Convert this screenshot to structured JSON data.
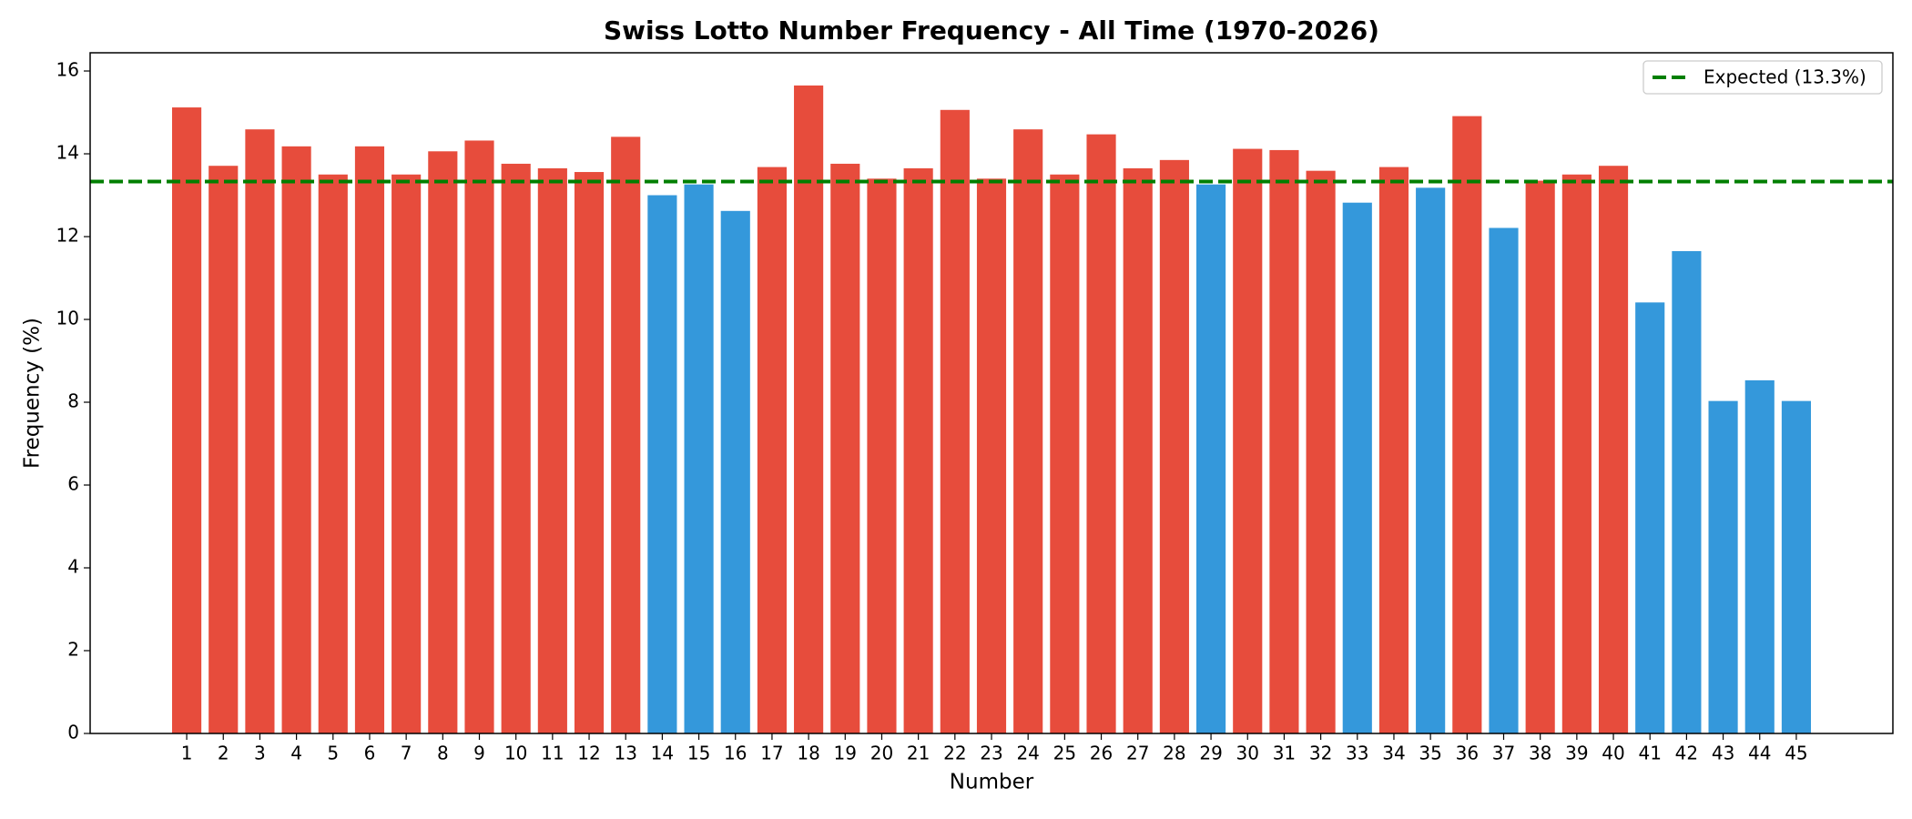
{
  "chart_data": {
    "type": "bar",
    "title": "Swiss Lotto Number Frequency - All Time (1970-2026)",
    "x_label": "Number",
    "y_label": "Frequency (%)",
    "x": [
      1,
      2,
      3,
      4,
      5,
      6,
      7,
      8,
      9,
      10,
      11,
      12,
      13,
      14,
      15,
      16,
      17,
      18,
      19,
      20,
      21,
      22,
      23,
      24,
      25,
      26,
      27,
      28,
      29,
      30,
      31,
      32,
      33,
      34,
      35,
      36,
      37,
      38,
      39,
      40,
      41,
      42,
      43,
      44,
      45
    ],
    "values": [
      15.12,
      13.71,
      14.59,
      14.18,
      13.5,
      14.18,
      13.5,
      14.06,
      14.32,
      13.76,
      13.65,
      13.56,
      14.41,
      13.0,
      13.26,
      12.62,
      13.68,
      15.65,
      13.76,
      13.4,
      13.65,
      15.06,
      13.4,
      14.59,
      13.5,
      14.47,
      13.65,
      13.85,
      13.26,
      14.12,
      14.09,
      13.59,
      12.82,
      13.68,
      13.18,
      14.91,
      12.21,
      13.35,
      13.5,
      13.71,
      10.41,
      11.65,
      8.03,
      8.53,
      8.03
    ],
    "colors": [
      "#e74c3c",
      "#e74c3c",
      "#e74c3c",
      "#e74c3c",
      "#e74c3c",
      "#e74c3c",
      "#e74c3c",
      "#e74c3c",
      "#e74c3c",
      "#e74c3c",
      "#e74c3c",
      "#e74c3c",
      "#e74c3c",
      "#3498db",
      "#3498db",
      "#3498db",
      "#e74c3c",
      "#e74c3c",
      "#e74c3c",
      "#e74c3c",
      "#e74c3c",
      "#e74c3c",
      "#e74c3c",
      "#e74c3c",
      "#e74c3c",
      "#e74c3c",
      "#e74c3c",
      "#e74c3c",
      "#3498db",
      "#e74c3c",
      "#e74c3c",
      "#e74c3c",
      "#3498db",
      "#e74c3c",
      "#3498db",
      "#e74c3c",
      "#3498db",
      "#e74c3c",
      "#e74c3c",
      "#e74c3c",
      "#3498db",
      "#3498db",
      "#3498db",
      "#3498db",
      "#3498db"
    ],
    "bar_width": 0.8,
    "xlim": [
      -1.64,
      47.64
    ],
    "ylim": [
      0,
      16.44
    ],
    "yticks": [
      0,
      2,
      4,
      6,
      8,
      10,
      12,
      14,
      16
    ],
    "reference_line": {
      "value": 13.33,
      "label": "Expected (13.3%)",
      "color": "#007f00"
    },
    "legend": "upper right"
  }
}
